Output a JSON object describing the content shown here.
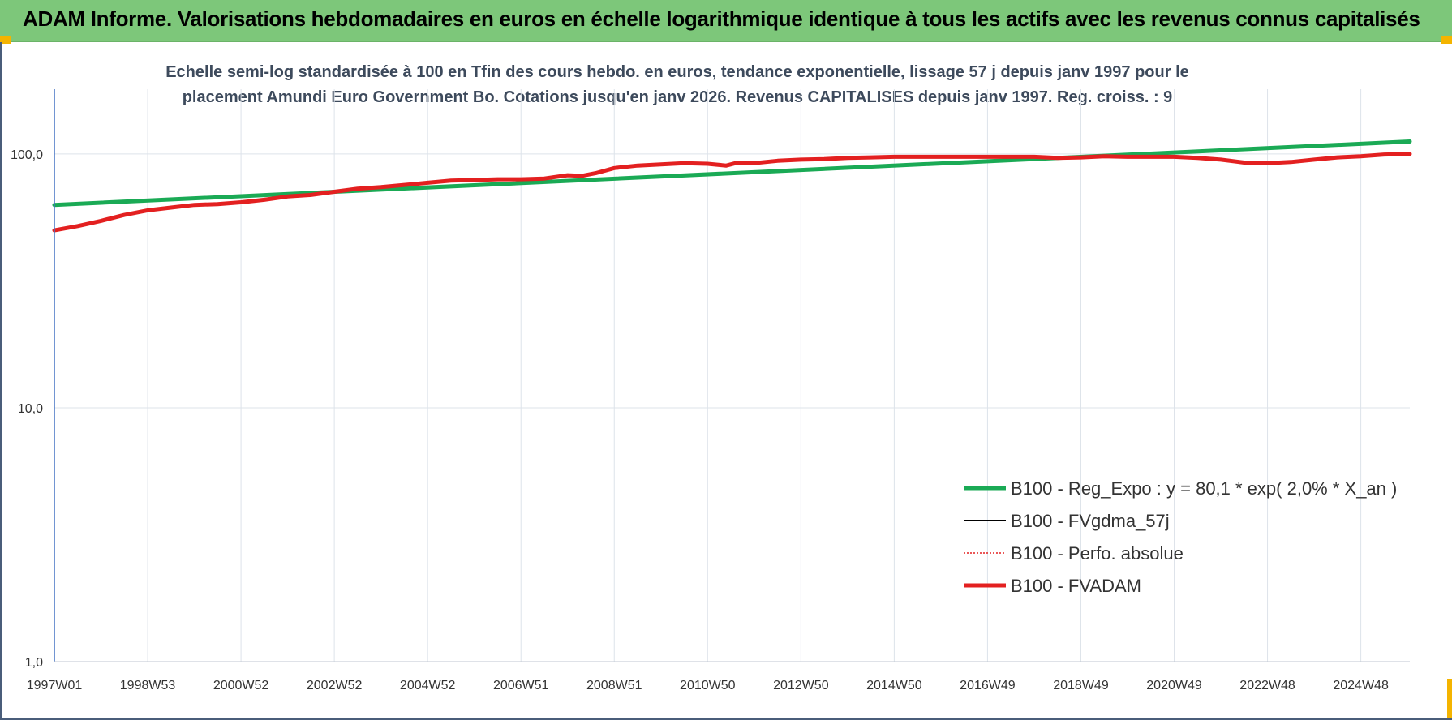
{
  "header": {
    "title": "ADAM Informe. Valorisations hebdomadaires en euros en échelle logarithmique identique à tous les actifs avec les revenus connus capitalisés"
  },
  "chart_data": {
    "type": "line",
    "subtitle_lines": [
      "Echelle semi-log standardisée à 100 en Tfin des cours hebdo. en euros, tendance exponentielle, lissage 57 j depuis janv 1997 pour le",
      "placement Amundi Euro Government Bo. Cotations jusqu'en janv 2026. Revenus CAPITALISES depuis janv 1997. Reg. croiss. : 9"
    ],
    "yscale": "log",
    "ylim": [
      1,
      180
    ],
    "y_ticks": [
      {
        "value": 1,
        "label": "1,0"
      },
      {
        "value": 10,
        "label": "10,0"
      },
      {
        "value": 100,
        "label": "100,0"
      }
    ],
    "x_unit": "year",
    "xlim": [
      1997.0,
      2026.05
    ],
    "x_ticks": [
      {
        "pos": 1997.0,
        "label": "1997W01"
      },
      {
        "pos": 1999.0,
        "label": "1998W53"
      },
      {
        "pos": 2001.0,
        "label": "2000W52"
      },
      {
        "pos": 2003.0,
        "label": "2002W52"
      },
      {
        "pos": 2005.0,
        "label": "2004W52"
      },
      {
        "pos": 2007.0,
        "label": "2006W51"
      },
      {
        "pos": 2009.0,
        "label": "2008W51"
      },
      {
        "pos": 2011.0,
        "label": "2010W50"
      },
      {
        "pos": 2013.0,
        "label": "2012W50"
      },
      {
        "pos": 2015.0,
        "label": "2014W50"
      },
      {
        "pos": 2017.0,
        "label": "2016W49"
      },
      {
        "pos": 2019.0,
        "label": "2018W49"
      },
      {
        "pos": 2021.0,
        "label": "2020W49"
      },
      {
        "pos": 2023.0,
        "label": "2022W48"
      },
      {
        "pos": 2025.0,
        "label": "2024W48"
      }
    ],
    "grid": "vertical and horizontal",
    "legend_position": "lower-right",
    "series": [
      {
        "name": "B100 - Reg_Expo : y = 80,1 * exp( 2,0% *  X_an )",
        "color": "#1aaa55",
        "style": "solid-thick",
        "points": [
          [
            1997.0,
            63.0
          ],
          [
            2026.05,
            112.0
          ]
        ]
      },
      {
        "name": "B100 - FVgdma_57j",
        "color": "#000000",
        "style": "solid-thin",
        "points": []
      },
      {
        "name": "B100 - Perfo. absolue",
        "color": "#e32020",
        "style": "dotted",
        "points": []
      },
      {
        "name": "B100 - FVADAM",
        "color": "#e32020",
        "style": "solid-thick",
        "points": [
          [
            1997.0,
            50.0
          ],
          [
            1997.5,
            52.0
          ],
          [
            1998.0,
            54.5
          ],
          [
            1998.5,
            57.5
          ],
          [
            1999.0,
            60.0
          ],
          [
            1999.5,
            61.5
          ],
          [
            2000.0,
            63.0
          ],
          [
            2000.5,
            63.5
          ],
          [
            2001.0,
            64.5
          ],
          [
            2001.5,
            66.0
          ],
          [
            2002.0,
            68.0
          ],
          [
            2002.5,
            69.0
          ],
          [
            2003.0,
            71.0
          ],
          [
            2003.5,
            73.0
          ],
          [
            2004.0,
            74.0
          ],
          [
            2004.5,
            75.5
          ],
          [
            2005.0,
            77.0
          ],
          [
            2005.5,
            78.5
          ],
          [
            2006.0,
            79.0
          ],
          [
            2006.5,
            79.5
          ],
          [
            2007.0,
            79.5
          ],
          [
            2007.5,
            80.0
          ],
          [
            2008.0,
            82.5
          ],
          [
            2008.3,
            82.0
          ],
          [
            2008.6,
            84.0
          ],
          [
            2009.0,
            88.0
          ],
          [
            2009.5,
            90.0
          ],
          [
            2010.0,
            91.0
          ],
          [
            2010.5,
            92.0
          ],
          [
            2011.0,
            91.5
          ],
          [
            2011.4,
            90.0
          ],
          [
            2011.6,
            92.0
          ],
          [
            2012.0,
            92.0
          ],
          [
            2012.5,
            94.0
          ],
          [
            2013.0,
            95.0
          ],
          [
            2013.5,
            95.5
          ],
          [
            2014.0,
            96.5
          ],
          [
            2014.5,
            97.0
          ],
          [
            2015.0,
            97.5
          ],
          [
            2016.0,
            97.5
          ],
          [
            2017.0,
            97.5
          ],
          [
            2018.0,
            97.5
          ],
          [
            2018.5,
            96.5
          ],
          [
            2019.0,
            97.0
          ],
          [
            2019.5,
            98.0
          ],
          [
            2020.0,
            97.5
          ],
          [
            2020.5,
            97.5
          ],
          [
            2021.0,
            97.5
          ],
          [
            2021.5,
            96.5
          ],
          [
            2022.0,
            95.0
          ],
          [
            2022.5,
            92.5
          ],
          [
            2023.0,
            92.0
          ],
          [
            2023.5,
            93.0
          ],
          [
            2024.0,
            95.0
          ],
          [
            2024.5,
            97.0
          ],
          [
            2025.0,
            98.0
          ],
          [
            2025.5,
            99.5
          ],
          [
            2026.05,
            100.0
          ]
        ]
      }
    ]
  }
}
